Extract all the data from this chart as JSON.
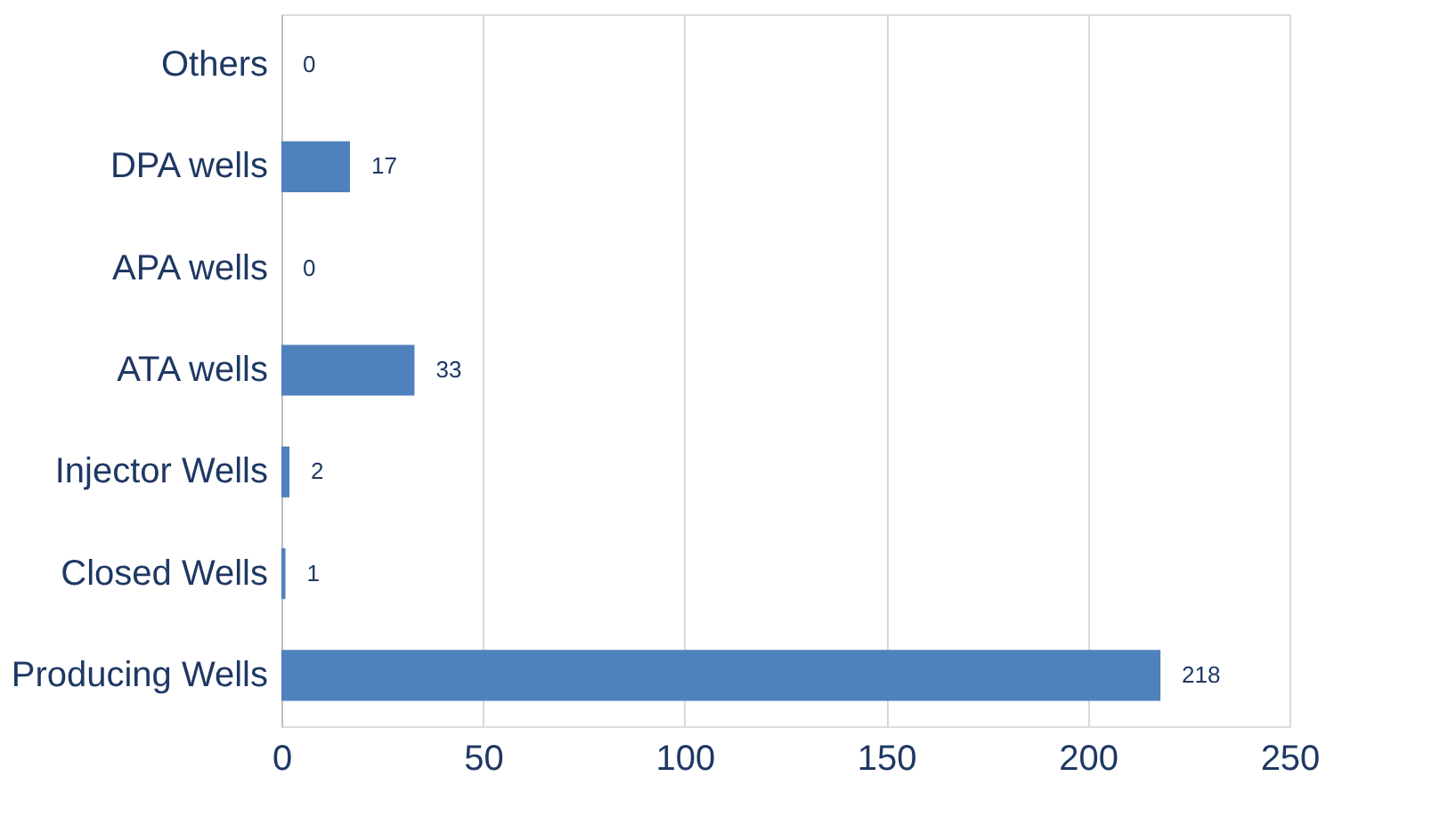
{
  "chart_data": {
    "type": "bar",
    "orientation": "horizontal",
    "categories": [
      "Others",
      "DPA wells",
      "APA wells",
      "ATA wells",
      "Injector Wells",
      "Closed Wells",
      "Producing Wells"
    ],
    "values": [
      0,
      17,
      0,
      33,
      2,
      1,
      218
    ],
    "color": "#4f81bd",
    "xlim": [
      0,
      250
    ],
    "xticks": [
      0,
      50,
      100,
      150,
      200,
      250
    ],
    "grid": "x",
    "data_labels": true
  }
}
